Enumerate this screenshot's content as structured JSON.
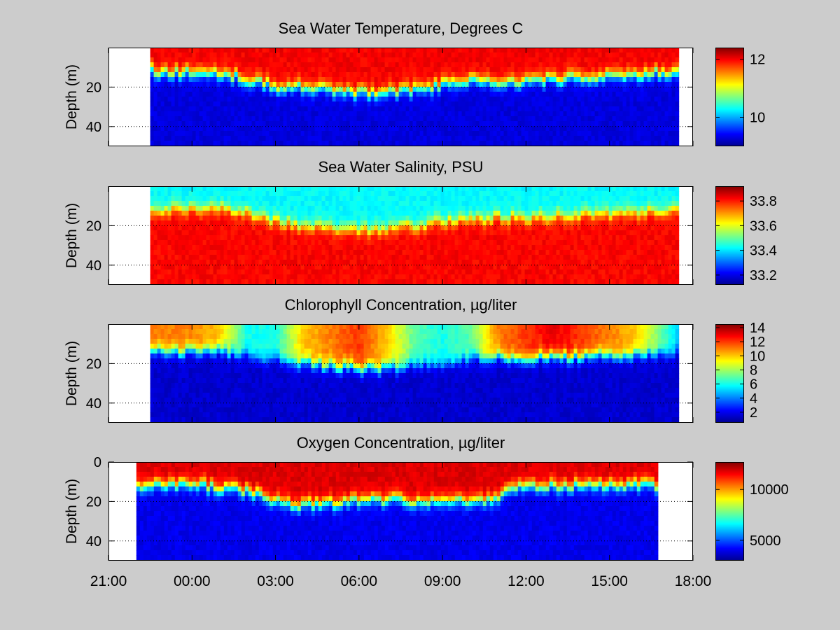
{
  "figure": {
    "background": "#cccccc",
    "x_ticks": [
      "21:00",
      "00:00",
      "03:00",
      "06:00",
      "09:00",
      "12:00",
      "15:00",
      "18:00"
    ]
  },
  "chart_data": [
    {
      "type": "heatmap",
      "title": "Sea Water Temperature, Degrees C",
      "ylabel": "Depth (m)",
      "x_range": [
        "21:00",
        "18:00"
      ],
      "data_x_range": [
        "22:30",
        "17:30"
      ],
      "ylim": [
        50,
        0
      ],
      "y_ticks": [
        "20",
        "40"
      ],
      "grid": "dotted horizontal at 20 and 40",
      "colormap": "jet",
      "colorbar": {
        "range": [
          9.0,
          12.4
        ],
        "ticks": [
          "10",
          "12"
        ]
      },
      "surface_value": 12.0,
      "deep_value": 9.3,
      "transition_depth_m": 12,
      "transition_depth_profile": [
        [
          "22:30",
          12
        ],
        [
          "00:00",
          13
        ],
        [
          "01:00",
          13
        ],
        [
          "02:00",
          16
        ],
        [
          "03:00",
          20
        ],
        [
          "04:00",
          20
        ],
        [
          "05:00",
          22
        ],
        [
          "06:00",
          23
        ],
        [
          "07:00",
          23
        ],
        [
          "08:00",
          21
        ],
        [
          "09:00",
          19
        ],
        [
          "10:00",
          17
        ],
        [
          "11:00",
          18
        ],
        [
          "12:00",
          17
        ],
        [
          "13:00",
          16
        ],
        [
          "14:00",
          15
        ],
        [
          "15:00",
          15
        ],
        [
          "16:00",
          14
        ],
        [
          "17:30",
          12
        ]
      ]
    },
    {
      "type": "heatmap",
      "title": "Sea Water Salinity, PSU",
      "ylabel": "Depth (m)",
      "x_range": [
        "21:00",
        "18:00"
      ],
      "data_x_range": [
        "22:30",
        "17:30"
      ],
      "ylim": [
        50,
        0
      ],
      "y_ticks": [
        "20",
        "40"
      ],
      "grid": "dotted horizontal at 20 and 40",
      "colormap": "jet",
      "colorbar": {
        "range": [
          33.12,
          33.92
        ],
        "ticks": [
          "33.2",
          "33.4",
          "33.6",
          "33.8"
        ]
      },
      "surface_value": 33.42,
      "deep_value": 33.82,
      "transition_depth_m": 12,
      "transition_depth_profile": [
        [
          "22:30",
          12
        ],
        [
          "00:00",
          11
        ],
        [
          "01:00",
          11
        ],
        [
          "02:00",
          14
        ],
        [
          "03:00",
          18
        ],
        [
          "04:00",
          20
        ],
        [
          "05:00",
          22
        ],
        [
          "06:00",
          22
        ],
        [
          "07:00",
          22
        ],
        [
          "08:00",
          20
        ],
        [
          "09:00",
          18
        ],
        [
          "10:00",
          17
        ],
        [
          "11:00",
          16
        ],
        [
          "12:00",
          16
        ],
        [
          "13:00",
          15
        ],
        [
          "14:00",
          14
        ],
        [
          "15:00",
          14
        ],
        [
          "16:00",
          13
        ],
        [
          "17:30",
          12
        ]
      ]
    },
    {
      "type": "heatmap",
      "title": "Chlorophyll Concentration, µg/liter",
      "ylabel": "Depth (m)",
      "x_range": [
        "21:00",
        "18:00"
      ],
      "data_x_range": [
        "22:30",
        "17:30"
      ],
      "ylim": [
        50,
        0
      ],
      "y_ticks": [
        "20",
        "40"
      ],
      "grid": "dotted horizontal at 20 and 40",
      "colormap": "jet",
      "colorbar": {
        "range": [
          0.5,
          14.5
        ],
        "ticks": [
          "2",
          "4",
          "6",
          "8",
          "10",
          "12",
          "14"
        ]
      },
      "surface_value_profile": [
        [
          "22:30",
          11
        ],
        [
          "00:00",
          11
        ],
        [
          "01:00",
          10
        ],
        [
          "02:00",
          6
        ],
        [
          "03:00",
          6
        ],
        [
          "04:00",
          10
        ],
        [
          "05:00",
          11
        ],
        [
          "06:00",
          12
        ],
        [
          "07:00",
          10
        ],
        [
          "08:00",
          7
        ],
        [
          "09:00",
          6
        ],
        [
          "10:00",
          7
        ],
        [
          "11:00",
          11
        ],
        [
          "12:00",
          12
        ],
        [
          "13:00",
          13
        ],
        [
          "14:00",
          12
        ],
        [
          "15:00",
          11
        ],
        [
          "16:00",
          10
        ],
        [
          "17:30",
          5
        ]
      ],
      "deep_value": 1.5,
      "transition_depth_profile": [
        [
          "22:30",
          13
        ],
        [
          "00:00",
          14
        ],
        [
          "01:00",
          14
        ],
        [
          "02:00",
          16
        ],
        [
          "03:00",
          18
        ],
        [
          "04:00",
          20
        ],
        [
          "05:00",
          21
        ],
        [
          "06:00",
          22
        ],
        [
          "07:00",
          23
        ],
        [
          "08:00",
          21
        ],
        [
          "09:00",
          20
        ],
        [
          "10:00",
          18
        ],
        [
          "11:00",
          17
        ],
        [
          "12:00",
          17
        ],
        [
          "13:00",
          17
        ],
        [
          "14:00",
          16
        ],
        [
          "15:00",
          16
        ],
        [
          "16:00",
          15
        ],
        [
          "17:30",
          14
        ]
      ]
    },
    {
      "type": "heatmap",
      "title": "Oxygen Concentration, µg/liter",
      "ylabel": "Depth (m)",
      "x_range": [
        "21:00",
        "18:00"
      ],
      "data_x_range": [
        "22:00",
        "16:45"
      ],
      "ylim": [
        50,
        0
      ],
      "y_ticks": [
        "0",
        "20",
        "40"
      ],
      "grid": "dotted horizontal at 20 and 40",
      "colormap": "jet",
      "colorbar": {
        "range": [
          3000,
          12700
        ],
        "ticks": [
          "5000",
          "10000"
        ]
      },
      "surface_value": 11800,
      "deep_value": 4000,
      "transition_depth_profile": [
        [
          "22:00",
          12
        ],
        [
          "00:00",
          11
        ],
        [
          "01:00",
          13
        ],
        [
          "02:00",
          15
        ],
        [
          "03:00",
          20
        ],
        [
          "04:00",
          22
        ],
        [
          "05:00",
          21
        ],
        [
          "06:00",
          20
        ],
        [
          "07:00",
          19
        ],
        [
          "08:00",
          20
        ],
        [
          "09:00",
          20
        ],
        [
          "10:00",
          19
        ],
        [
          "11:00",
          19
        ],
        [
          "11:30",
          12
        ],
        [
          "12:00",
          12
        ],
        [
          "14:00",
          12
        ],
        [
          "16:45",
          12
        ]
      ]
    }
  ]
}
